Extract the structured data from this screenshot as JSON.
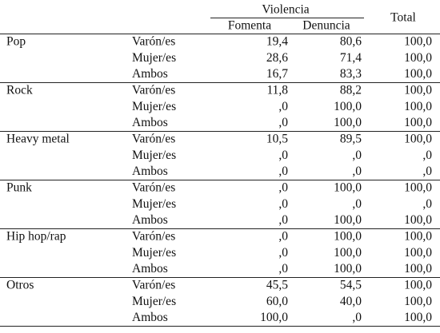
{
  "header": {
    "group": "Violencia",
    "columns": [
      "Fomenta",
      "Denuncia"
    ],
    "total": "Total"
  },
  "groups": [
    {
      "name": "Pop",
      "rows": [
        [
          "Varón/es",
          "19,4",
          "80,6",
          "100,0"
        ],
        [
          "Mujer/es",
          "28,6",
          "71,4",
          "100,0"
        ],
        [
          "Ambos",
          "16,7",
          "83,3",
          "100,0"
        ]
      ]
    },
    {
      "name": "Rock",
      "rows": [
        [
          "Varón/es",
          "11,8",
          "88,2",
          "100,0"
        ],
        [
          "Mujer/es",
          ",0",
          "100,0",
          "100,0"
        ],
        [
          "Ambos",
          ",0",
          "100,0",
          "100,0"
        ]
      ]
    },
    {
      "name": "Heavy metal",
      "rows": [
        [
          "Varón/es",
          "10,5",
          "89,5",
          "100,0"
        ],
        [
          "Mujer/es",
          ",0",
          ",0",
          ",0"
        ],
        [
          "Ambos",
          ",0",
          ",0",
          ",0"
        ]
      ]
    },
    {
      "name": "Punk",
      "rows": [
        [
          "Varón/es",
          ",0",
          "100,0",
          "100,0"
        ],
        [
          "Mujer/es",
          ",0",
          ",0",
          ",0"
        ],
        [
          "Ambos",
          ",0",
          "100,0",
          "100,0"
        ]
      ]
    },
    {
      "name": "Hip hop/rap",
      "rows": [
        [
          "Varón/es",
          ",0",
          "100,0",
          "100,0"
        ],
        [
          "Mujer/es",
          ",0",
          "100,0",
          "100,0"
        ],
        [
          "Ambos",
          ",0",
          "100,0",
          "100,0"
        ]
      ]
    },
    {
      "name": "Otros",
      "rows": [
        [
          "Varón/es",
          "45,5",
          "54,5",
          "100,0"
        ],
        [
          "Mujer/es",
          "60,0",
          "40,0",
          "100,0"
        ],
        [
          "Ambos",
          "100,0",
          ",0",
          "100,0"
        ]
      ]
    }
  ]
}
